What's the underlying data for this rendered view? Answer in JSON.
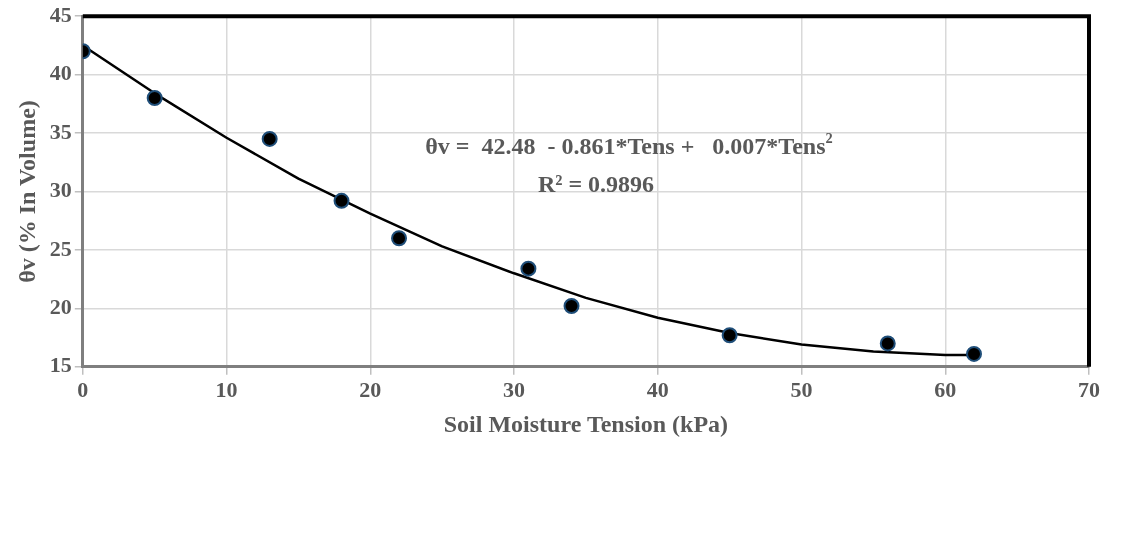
{
  "chart_data": {
    "type": "scatter",
    "xlabel": "Soil Moisture Tension (kPa)",
    "ylabel": "θv (% In Volume)",
    "annotations": [
      "θv =  42.48  - 0.861*Tens +   0.007*Tens$^{2}$",
      "R² = 0.9896"
    ],
    "x": [
      0,
      5,
      13,
      18,
      22,
      31,
      34,
      45,
      56,
      62
    ],
    "series": [
      {
        "color": "#000000",
        "marker": "circle",
        "values": [
          42,
          38,
          34.5,
          29.2,
          26,
          23.4,
          20.2,
          17.7,
          17,
          16.1
        ]
      },
      {
        "type": "line",
        "color": "#000000",
        "marker": "none",
        "line_style": "solid",
        "x": [
          0,
          5,
          10,
          15,
          20,
          25,
          30,
          35,
          40,
          45,
          50,
          55,
          60,
          62
        ],
        "values": [
          42.5,
          38.4,
          34.6,
          31.1,
          28.1,
          25.3,
          23,
          20.9,
          19.2,
          17.9,
          16.9,
          16.3,
          16,
          16
        ]
      }
    ],
    "xlim": [
      0,
      70
    ],
    "xticks": [
      0,
      10,
      20,
      30,
      40,
      50,
      60,
      70
    ],
    "ylim": [
      15,
      45
    ],
    "yticks": [
      15,
      20,
      25,
      30,
      35,
      40,
      45
    ],
    "grid": true,
    "legend": false
  }
}
